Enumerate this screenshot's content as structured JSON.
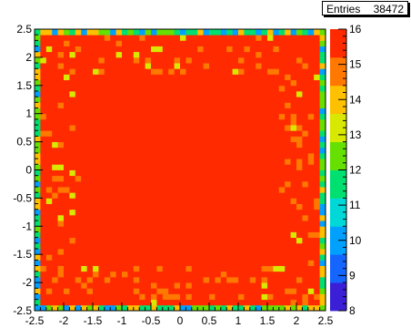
{
  "stats": {
    "label": "Entries",
    "value": "38472"
  },
  "chart_data": {
    "type": "heatmap",
    "title": "",
    "xlabel": "",
    "ylabel": "",
    "xlim": [
      -2.5,
      2.5
    ],
    "ylim": [
      -2.5,
      2.5
    ],
    "zlim": [
      8,
      16
    ],
    "bins": 50,
    "x_tick_labels": [
      "-2.5",
      "-2",
      "-1.5",
      "-1",
      "-0.5",
      "0",
      "0.5",
      "1",
      "1.5",
      "2",
      "2.5"
    ],
    "y_tick_labels": [
      "-2.5",
      "-2",
      "-1.5",
      "-1",
      "-0.5",
      "0",
      "0.5",
      "1",
      "1.5",
      "2",
      "2.5"
    ],
    "palette_labels": [
      "8",
      "9",
      "10",
      "11",
      "12",
      "13",
      "14",
      "15",
      "16"
    ],
    "palette_colors": [
      "#3a1fd6",
      "#1565ff",
      "#00a0ff",
      "#00d8d8",
      "#00e070",
      "#66e000",
      "#d8e800",
      "#ffc000",
      "#ff7800",
      "#ff2a00"
    ],
    "cell_values": {
      "interior": 16,
      "border_ring": 11.5,
      "band_typical": 15.5,
      "band_low": 14.5
    },
    "grid": false
  }
}
